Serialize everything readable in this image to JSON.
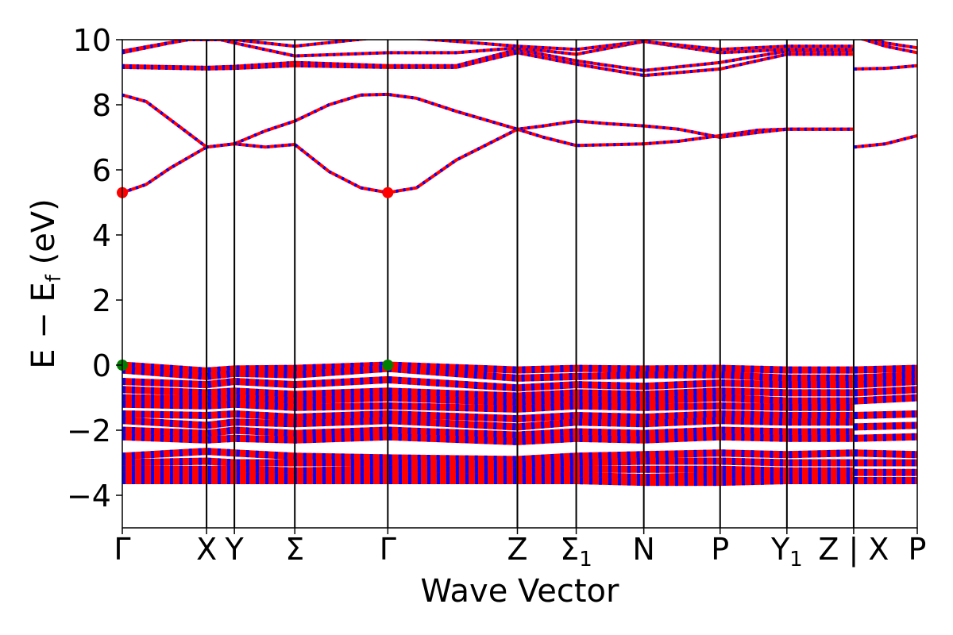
{
  "chart_data": {
    "type": "line",
    "title": "",
    "xlabel": "Wave Vector",
    "ylabel": "E − E_f (eV)",
    "ylabel_main": "E − E",
    "ylabel_sub": "f",
    "ylabel_unit": " (eV)",
    "ylim": [
      -5,
      10
    ],
    "yticks": [
      -4,
      -2,
      0,
      2,
      4,
      6,
      8,
      10
    ],
    "ytick_labels": [
      "−4",
      "−2",
      "0",
      "2",
      "4",
      "6",
      "8",
      "10"
    ],
    "grid": false,
    "legend": "none",
    "colors": {
      "band": "#ff0000",
      "band_dash": "#0000ff",
      "vbm": "#008000",
      "cbm": "#ff0000",
      "axis": "#000000"
    },
    "kpoints": [
      {
        "label": "Γ",
        "x": 0.0
      },
      {
        "label": "X",
        "x": 0.106
      },
      {
        "label": "Y",
        "x": 0.141
      },
      {
        "label": "Σ",
        "x": 0.217
      },
      {
        "label": "Γ",
        "x": 0.334
      },
      {
        "label": "Z",
        "x": 0.497
      },
      {
        "label": "Σ",
        "sub": "1",
        "x": 0.571
      },
      {
        "label": "N",
        "x": 0.656
      },
      {
        "label": "P",
        "x": 0.752
      },
      {
        "label": "Y",
        "sub": "1",
        "x": 0.836
      },
      {
        "label": "Z | X",
        "x": 0.92
      },
      {
        "label": "P",
        "x": 1.0
      }
    ],
    "segment_break": 0.92,
    "conduction_bands": [
      {
        "name": "CB1",
        "x": [
          0.0,
          0.03,
          0.06,
          0.106,
          0.141,
          0.18,
          0.217,
          0.26,
          0.3,
          0.334,
          0.37,
          0.42,
          0.497,
          0.53,
          0.571,
          0.61,
          0.656,
          0.7,
          0.752,
          0.8,
          0.836,
          0.88,
          0.919
        ],
        "y": [
          5.3,
          5.55,
          6.05,
          6.7,
          6.8,
          6.7,
          6.78,
          5.95,
          5.45,
          5.3,
          5.45,
          6.3,
          7.25,
          7.0,
          6.75,
          6.77,
          6.8,
          6.88,
          7.05,
          7.22,
          7.25,
          7.25,
          7.25
        ]
      },
      {
        "name": "CB2",
        "x": [
          0.0,
          0.03,
          0.06,
          0.106,
          0.141,
          0.18,
          0.217,
          0.26,
          0.3,
          0.334,
          0.37,
          0.42,
          0.497,
          0.53,
          0.571,
          0.61,
          0.656,
          0.7,
          0.752,
          0.8,
          0.836,
          0.88,
          0.919
        ],
        "y": [
          8.3,
          8.1,
          7.55,
          6.7,
          6.8,
          7.2,
          7.5,
          8.0,
          8.3,
          8.32,
          8.2,
          7.8,
          7.25,
          7.35,
          7.5,
          7.42,
          7.35,
          7.25,
          7.0,
          7.15,
          7.25,
          7.25,
          7.25
        ]
      },
      {
        "name": "CB3",
        "x": [
          0.0,
          0.106,
          0.141,
          0.217,
          0.334,
          0.42,
          0.497,
          0.571,
          0.656,
          0.752,
          0.836,
          0.919
        ],
        "y": [
          9.15,
          9.1,
          9.12,
          9.2,
          9.15,
          9.15,
          9.6,
          9.25,
          8.9,
          9.1,
          9.55,
          9.55
        ]
      },
      {
        "name": "CB4",
        "x": [
          0.0,
          0.106,
          0.141,
          0.217,
          0.334,
          0.42,
          0.497,
          0.571,
          0.656,
          0.752,
          0.836,
          0.919
        ],
        "y": [
          9.2,
          9.15,
          9.18,
          9.3,
          9.2,
          9.2,
          9.7,
          9.35,
          9.05,
          9.3,
          9.65,
          9.65
        ]
      },
      {
        "name": "CB5",
        "x": [
          0.0,
          0.06,
          0.106,
          0.141,
          0.217,
          0.334,
          0.42,
          0.497,
          0.571,
          0.656,
          0.752,
          0.836,
          0.919
        ],
        "y": [
          9.6,
          9.9,
          10.1,
          9.9,
          9.5,
          9.6,
          9.6,
          9.75,
          9.55,
          9.95,
          9.6,
          9.7,
          9.7
        ]
      },
      {
        "name": "CB6",
        "x": [
          0.0,
          0.08,
          0.141,
          0.217,
          0.334,
          0.42,
          0.497,
          0.571,
          0.656,
          0.752,
          0.836,
          0.919
        ],
        "y": [
          9.65,
          10.0,
          10.0,
          9.8,
          10.1,
          9.95,
          9.8,
          9.7,
          9.95,
          9.7,
          9.8,
          9.8
        ]
      },
      {
        "name": "CB7",
        "x": [
          0.921,
          0.96,
          1.0
        ],
        "y": [
          6.7,
          6.8,
          7.05
        ]
      },
      {
        "name": "CB8",
        "x": [
          0.921,
          0.96,
          1.0
        ],
        "y": [
          9.1,
          9.12,
          9.2
        ]
      },
      {
        "name": "CB9",
        "x": [
          0.921,
          0.96,
          1.0
        ],
        "y": [
          10.1,
          9.8,
          9.6
        ]
      },
      {
        "name": "CB10",
        "x": [
          0.921,
          0.96,
          1.0
        ],
        "y": [
          10.2,
          9.9,
          9.75
        ]
      }
    ],
    "valence_bands": [
      {
        "name": "VB1",
        "x": [
          0.0,
          0.106,
          0.141,
          0.217,
          0.334,
          0.497,
          0.571,
          0.656,
          0.752,
          0.836,
          0.919
        ],
        "y": [
          0.0,
          -0.18,
          -0.12,
          -0.1,
          0.0,
          -0.15,
          -0.1,
          -0.12,
          -0.1,
          -0.15,
          -0.15
        ]
      },
      {
        "name": "VB2",
        "x": [
          0.0,
          0.106,
          0.141,
          0.217,
          0.334,
          0.497,
          0.571,
          0.656,
          0.752,
          0.836,
          0.919
        ],
        "y": [
          -0.15,
          -0.35,
          -0.25,
          -0.3,
          -0.1,
          -0.4,
          -0.35,
          -0.3,
          -0.3,
          -0.4,
          -0.4
        ]
      },
      {
        "name": "VB3",
        "x": [
          0.0,
          0.106,
          0.141,
          0.217,
          0.334,
          0.497,
          0.571,
          0.656,
          0.752,
          0.836,
          0.919
        ],
        "y": [
          -0.5,
          -0.6,
          -0.5,
          -0.6,
          -0.45,
          -0.7,
          -0.6,
          -0.65,
          -0.55,
          -0.6,
          -0.6
        ]
      },
      {
        "name": "VB4",
        "x": [
          0.0,
          0.106,
          0.141,
          0.217,
          0.334,
          0.497,
          0.571,
          0.656,
          0.752,
          0.836,
          0.919
        ],
        "y": [
          -0.75,
          -0.85,
          -0.8,
          -0.9,
          -0.8,
          -0.95,
          -0.85,
          -0.9,
          -0.8,
          -0.85,
          -0.85
        ]
      },
      {
        "name": "VB5",
        "x": [
          0.0,
          0.106,
          0.141,
          0.217,
          0.334,
          0.497,
          0.571,
          0.656,
          0.752,
          0.836,
          0.919
        ],
        "y": [
          -1.0,
          -1.05,
          -1.0,
          -1.1,
          -1.0,
          -1.15,
          -1.05,
          -1.1,
          -1.0,
          -1.1,
          -1.1
        ]
      },
      {
        "name": "VB6",
        "x": [
          0.0,
          0.106,
          0.141,
          0.217,
          0.334,
          0.497,
          0.571,
          0.656,
          0.752,
          0.836,
          0.919
        ],
        "y": [
          -1.2,
          -1.25,
          -1.2,
          -1.3,
          -1.25,
          -1.35,
          -1.25,
          -1.3,
          -1.25,
          -1.3,
          -1.3
        ]
      },
      {
        "name": "VB7",
        "x": [
          0.0,
          0.106,
          0.141,
          0.217,
          0.334,
          0.497,
          0.571,
          0.656,
          0.752,
          0.836,
          0.919
        ],
        "y": [
          -1.5,
          -1.55,
          -1.5,
          -1.6,
          -1.5,
          -1.65,
          -1.55,
          -1.6,
          -1.5,
          -1.55,
          -1.55
        ]
      },
      {
        "name": "VB8",
        "x": [
          0.0,
          0.106,
          0.141,
          0.217,
          0.334,
          0.497,
          0.571,
          0.656,
          0.752,
          0.836,
          0.919
        ],
        "y": [
          -1.7,
          -1.85,
          -1.75,
          -1.8,
          -1.7,
          -1.9,
          -1.75,
          -1.8,
          -1.7,
          -1.75,
          -1.75
        ]
      },
      {
        "name": "VB9",
        "x": [
          0.0,
          0.106,
          0.141,
          0.217,
          0.334,
          0.497,
          0.571,
          0.656,
          0.752,
          0.836,
          0.919
        ],
        "y": [
          -2.0,
          -2.1,
          -2.0,
          -2.1,
          -2.0,
          -2.15,
          -2.05,
          -2.1,
          -2.0,
          -2.05,
          -2.05
        ]
      },
      {
        "name": "VB10",
        "x": [
          0.0,
          0.106,
          0.141,
          0.217,
          0.334,
          0.497,
          0.571,
          0.656,
          0.752,
          0.836,
          0.919
        ],
        "y": [
          -2.2,
          -2.3,
          -2.25,
          -2.3,
          -2.2,
          -2.35,
          -2.25,
          -2.3,
          -2.2,
          -2.25,
          -2.25
        ]
      },
      {
        "name": "VB11",
        "x": [
          0.0,
          0.106,
          0.141,
          0.217,
          0.334,
          0.497,
          0.571,
          0.656,
          0.752,
          0.836,
          0.919
        ],
        "y": [
          -2.8,
          -2.65,
          -2.7,
          -2.8,
          -2.85,
          -2.9,
          -2.8,
          -2.75,
          -2.7,
          -2.75,
          -2.7
        ]
      },
      {
        "name": "VB12",
        "x": [
          0.0,
          0.106,
          0.141,
          0.217,
          0.334,
          0.497,
          0.571,
          0.656,
          0.752,
          0.836,
          0.919
        ],
        "y": [
          -3.0,
          -2.95,
          -3.0,
          -3.0,
          -3.0,
          -3.05,
          -3.0,
          -2.95,
          -2.95,
          -3.0,
          -3.0
        ]
      },
      {
        "name": "VB13",
        "x": [
          0.0,
          0.106,
          0.141,
          0.217,
          0.334,
          0.497,
          0.571,
          0.656,
          0.752,
          0.836,
          0.919
        ],
        "y": [
          -3.2,
          -3.2,
          -3.2,
          -3.25,
          -3.2,
          -3.25,
          -3.2,
          -3.2,
          -3.2,
          -3.25,
          -3.25
        ]
      },
      {
        "name": "VB14",
        "x": [
          0.0,
          0.106,
          0.141,
          0.217,
          0.334,
          0.497,
          0.571,
          0.656,
          0.752,
          0.836,
          0.919
        ],
        "y": [
          -3.4,
          -3.4,
          -3.4,
          -3.45,
          -3.4,
          -3.45,
          -3.4,
          -3.45,
          -3.4,
          -3.4,
          -3.4
        ]
      },
      {
        "name": "VB15",
        "x": [
          0.0,
          0.106,
          0.141,
          0.217,
          0.334,
          0.497,
          0.571,
          0.656,
          0.752,
          0.836,
          0.919
        ],
        "y": [
          -3.55,
          -3.55,
          -3.55,
          -3.55,
          -3.55,
          -3.55,
          -3.55,
          -3.6,
          -3.6,
          -3.55,
          -3.55
        ]
      },
      {
        "name": "VB16",
        "x": [
          0.921,
          1.0
        ],
        "y": [
          -0.15,
          -0.1
        ]
      },
      {
        "name": "VB17",
        "x": [
          0.921,
          1.0
        ],
        "y": [
          -0.4,
          -0.3
        ]
      },
      {
        "name": "VB18",
        "x": [
          0.921,
          1.0
        ],
        "y": [
          -0.6,
          -0.5
        ]
      },
      {
        "name": "VB19",
        "x": [
          0.921,
          1.0
        ],
        "y": [
          -0.85,
          -0.75
        ]
      },
      {
        "name": "VB20",
        "x": [
          0.921,
          1.0
        ],
        "y": [
          -1.1,
          -1.0
        ]
      },
      {
        "name": "VB21",
        "x": [
          0.921,
          1.0
        ],
        "y": [
          -1.55,
          -1.5
        ]
      },
      {
        "name": "VB22",
        "x": [
          0.921,
          1.0
        ],
        "y": [
          -1.9,
          -1.85
        ]
      },
      {
        "name": "VB23",
        "x": [
          0.921,
          1.0
        ],
        "y": [
          -2.25,
          -2.2
        ]
      },
      {
        "name": "VB24",
        "x": [
          0.921,
          1.0
        ],
        "y": [
          -2.7,
          -2.75
        ]
      },
      {
        "name": "VB25",
        "x": [
          0.921,
          1.0
        ],
        "y": [
          -3.0,
          -3.0
        ]
      },
      {
        "name": "VB26",
        "x": [
          0.921,
          1.0
        ],
        "y": [
          -3.3,
          -3.3
        ]
      },
      {
        "name": "VB27",
        "x": [
          0.921,
          1.0
        ],
        "y": [
          -3.55,
          -3.55
        ]
      }
    ],
    "markers": [
      {
        "kind": "vbm",
        "x": 0.0,
        "y": 0.0
      },
      {
        "kind": "vbm",
        "x": 0.334,
        "y": 0.0
      },
      {
        "kind": "cbm",
        "x": 0.0,
        "y": 5.3
      },
      {
        "kind": "cbm",
        "x": 0.334,
        "y": 5.3
      }
    ]
  }
}
